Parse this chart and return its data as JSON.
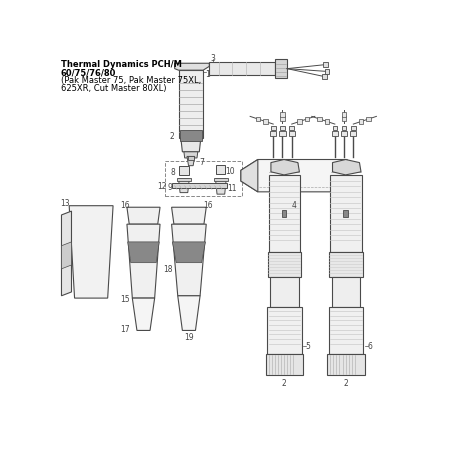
{
  "title_lines": [
    "Thermal Dynamics PCH/M",
    "60/75/76/80",
    "(Pak Master 75, Pak Master 75XL,",
    "625XR, Cut Master 80XL)"
  ],
  "bg_color": "#ffffff",
  "line_color": "#4a4a4a",
  "dark_fill": "#888888",
  "light_fill": "#e8e8e8",
  "label_color": "#444444",
  "title_color": "#000000",
  "font_size_title": 6.0,
  "font_size_label": 5.5
}
